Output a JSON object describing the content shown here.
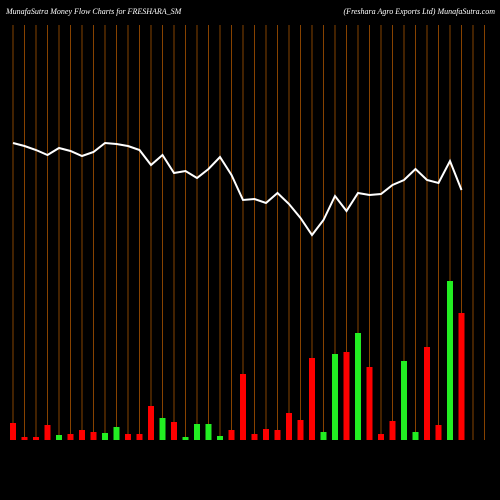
{
  "chart_data": [
    {
      "type": "bar",
      "title": "MunafaSutra  Money Flow  Charts for FRESHARA_SM",
      "subtitle": "(Freshara  Agro  Exports Ltd) MunafaSutra.com",
      "categories": [
        null,
        null,
        null,
        null,
        null,
        null,
        null,
        null,
        null,
        null,
        null,
        null,
        null,
        null,
        null,
        null,
        null,
        null,
        null,
        null,
        null,
        null,
        null,
        null,
        null,
        null,
        null,
        null,
        null,
        null,
        null,
        null,
        null,
        null,
        null,
        null,
        null,
        null,
        null,
        null
      ],
      "values": [
        17,
        3,
        3,
        15,
        5,
        6,
        10,
        8,
        7,
        13,
        6,
        6,
        34,
        22,
        18,
        3,
        16,
        16,
        4,
        10,
        66,
        6,
        11,
        10,
        27,
        20,
        82,
        8,
        86,
        88,
        107,
        73,
        6,
        19,
        79,
        8,
        93,
        15,
        159,
        127
      ],
      "colors": [
        "#ff0000",
        "#ff0000",
        "#ff0000",
        "#ff0000",
        "#22ee22",
        "#ff0000",
        "#ff0000",
        "#ff0000",
        "#22ee22",
        "#22ee22",
        "#ff0000",
        "#ff0000",
        "#ff0000",
        "#22ee22",
        "#ff0000",
        "#22ee22",
        "#22ee22",
        "#22ee22",
        "#22ee22",
        "#ff0000",
        "#ff0000",
        "#ff0000",
        "#ff0000",
        "#ff0000",
        "#ff0000",
        "#ff0000",
        "#ff0000",
        "#22ee22",
        "#22ee22",
        "#ff0000",
        "#22ee22",
        "#ff0000",
        "#ff0000",
        "#ff0000",
        "#22ee22",
        "#22ee22",
        "#ff0000",
        "#ff0000",
        "#22ee22",
        "#ff0000"
      ],
      "ylim": [
        0,
        440
      ],
      "grid_color": "#a85400"
    },
    {
      "type": "line",
      "values": [
        357,
        354,
        350,
        345,
        352,
        349,
        344,
        348,
        357,
        356,
        354,
        350,
        335,
        345,
        327,
        329,
        322,
        331,
        343,
        325,
        300,
        301,
        297,
        307,
        296,
        282,
        265,
        280,
        304,
        289,
        307,
        305,
        306,
        315,
        320,
        331,
        320,
        317,
        339,
        310
      ],
      "color": "#ffffff",
      "ylim": [
        0,
        500
      ]
    }
  ]
}
